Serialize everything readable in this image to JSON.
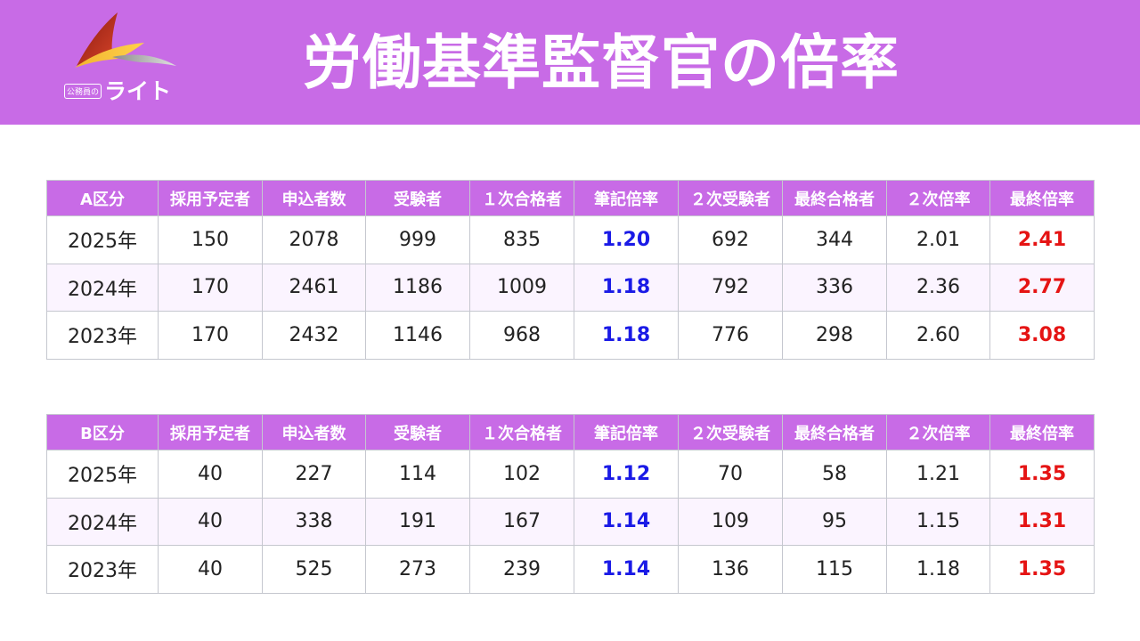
{
  "header": {
    "title": "労働基準監督官の倍率",
    "logo_sub": "公務員の",
    "logo_main": "ライト"
  },
  "colors": {
    "header_bg": "#c86be6",
    "written_ratio": "#1a1ae6",
    "final_ratio": "#e51414"
  },
  "tables": [
    {
      "headers": [
        "A区分",
        "採用予定者",
        "申込者数",
        "受験者",
        "１次合格者",
        "筆記倍率",
        "２次受験者",
        "最終合格者",
        "２次倍率",
        "最終倍率"
      ],
      "rows": [
        [
          "2025年",
          "150",
          "2078",
          "999",
          "835",
          "1.20",
          "692",
          "344",
          "2.01",
          "2.41"
        ],
        [
          "2024年",
          "170",
          "2461",
          "1186",
          "1009",
          "1.18",
          "792",
          "336",
          "2.36",
          "2.77"
        ],
        [
          "2023年",
          "170",
          "2432",
          "1146",
          "968",
          "1.18",
          "776",
          "298",
          "2.60",
          "3.08"
        ]
      ]
    },
    {
      "headers": [
        "B区分",
        "採用予定者",
        "申込者数",
        "受験者",
        "１次合格者",
        "筆記倍率",
        "２次受験者",
        "最終合格者",
        "２次倍率",
        "最終倍率"
      ],
      "rows": [
        [
          "2025年",
          "40",
          "227",
          "114",
          "102",
          "1.12",
          "70",
          "58",
          "1.21",
          "1.35"
        ],
        [
          "2024年",
          "40",
          "338",
          "191",
          "167",
          "1.14",
          "109",
          "95",
          "1.15",
          "1.31"
        ],
        [
          "2023年",
          "40",
          "525",
          "273",
          "239",
          "1.14",
          "136",
          "115",
          "1.18",
          "1.35"
        ]
      ]
    }
  ]
}
